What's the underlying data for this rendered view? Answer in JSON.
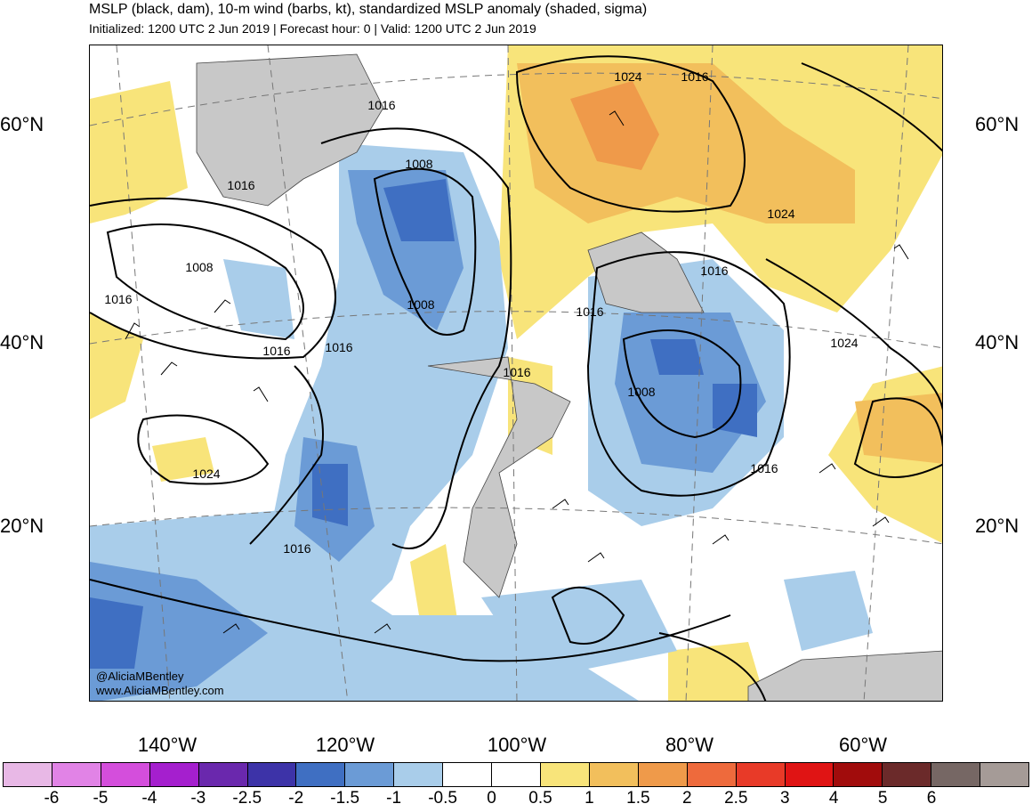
{
  "header": {
    "title": "MSLP (black, dam), 10-m wind (barbs, kt), standardized MSLP anomaly (shaded, sigma)",
    "subtitle": "Initialized: 1200 UTC 2 Jun 2019 | Forecast hour: 0 | Valid: 1200 UTC 2 Jun 2019"
  },
  "map": {
    "lat_labels": [
      "60°N",
      "40°N",
      "20°N"
    ],
    "lon_labels": [
      "140°W",
      "120°W",
      "100°W",
      "80°W",
      "60°W"
    ],
    "contour_labels": [
      "1024",
      "1016",
      "1008",
      "1016",
      "1016",
      "1008",
      "1016",
      "1008",
      "1016",
      "1016",
      "1016",
      "1016",
      "1016",
      "1008",
      "1024",
      "1024",
      "1016",
      "1024",
      "1016"
    ],
    "credit": [
      "@AliciaMBentley",
      "www.AliciaMBentley.com"
    ],
    "colors": {
      "land": "#c8c8c8",
      "neg_05": "#a9cdea",
      "neg_10": "#6b9bd6",
      "neg_15": "#3f6fc2",
      "pos_05": "#f8e47a",
      "pos_10": "#f2bf5c",
      "pos_15": "#ef9a4a"
    }
  },
  "colorbar": {
    "colors": [
      "#e8b8e6",
      "#e183e6",
      "#d44edc",
      "#a51fce",
      "#6a28ad",
      "#3d33a8",
      "#3f6fc2",
      "#6b9bd6",
      "#a9cdea",
      "#ffffff",
      "#ffffff",
      "#f8e47a",
      "#f2bf5c",
      "#ef9a4a",
      "#ee6a3c",
      "#e83a28",
      "#e01414",
      "#a10c0c",
      "#6b2a2a",
      "#766764",
      "#a59b97"
    ],
    "labels": [
      "-6",
      "-5",
      "-4",
      "-3",
      "-2.5",
      "-2",
      "-1.5",
      "-1",
      "-0.5",
      "0",
      "0.5",
      "1",
      "1.5",
      "2",
      "2.5",
      "3",
      "4",
      "5",
      "6"
    ]
  }
}
